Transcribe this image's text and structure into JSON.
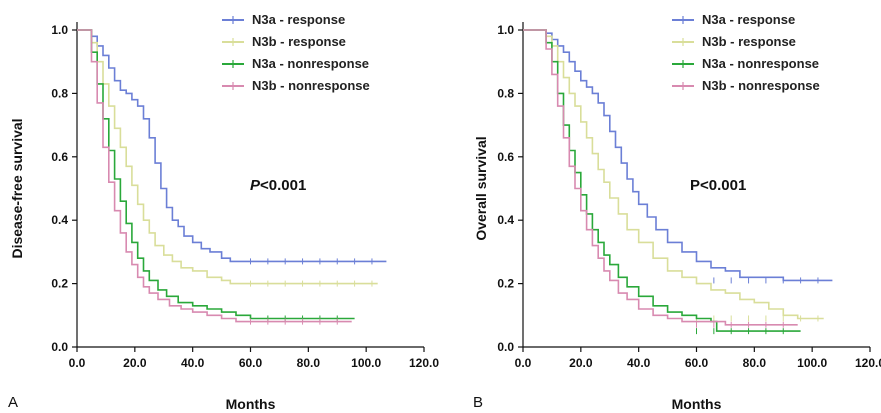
{
  "chart_data": [
    {
      "type": "line",
      "panel_label": "A",
      "xlabel": "Months",
      "ylabel": "Disease-free survival",
      "xlim": [
        0,
        120
      ],
      "ylim": [
        0,
        1.0
      ],
      "xticks": [
        "0.0",
        "20.0",
        "40.0",
        "60.0",
        "80.0",
        "100.0",
        "120.0"
      ],
      "yticks": [
        "0.0",
        "0.2",
        "0.4",
        "0.6",
        "0.8",
        "1.0"
      ],
      "annotation": {
        "italic": "P",
        "rest": "<0.001"
      },
      "legend_position": "top-right",
      "series": [
        {
          "name": "N3a - response",
          "color": "#6b7fd6",
          "x": [
            0,
            3,
            5,
            7,
            9,
            11,
            13,
            15,
            17,
            19,
            21,
            23,
            25,
            27,
            29,
            31,
            33,
            35,
            37,
            40,
            43,
            46,
            50,
            53,
            60,
            80,
            100,
            107
          ],
          "y": [
            1.0,
            1.0,
            0.98,
            0.95,
            0.92,
            0.88,
            0.84,
            0.81,
            0.8,
            0.78,
            0.76,
            0.72,
            0.66,
            0.58,
            0.5,
            0.44,
            0.4,
            0.38,
            0.35,
            0.33,
            0.31,
            0.3,
            0.28,
            0.27,
            0.27,
            0.27,
            0.27,
            0.27
          ]
        },
        {
          "name": "N3b - response",
          "color": "#d9de9a",
          "x": [
            0,
            3,
            5,
            7,
            9,
            11,
            13,
            15,
            17,
            19,
            21,
            23,
            25,
            27,
            30,
            33,
            36,
            40,
            45,
            50,
            53,
            60,
            80,
            100,
            104
          ],
          "y": [
            1.0,
            1.0,
            0.96,
            0.9,
            0.83,
            0.76,
            0.69,
            0.63,
            0.57,
            0.51,
            0.45,
            0.4,
            0.36,
            0.32,
            0.29,
            0.27,
            0.25,
            0.24,
            0.22,
            0.21,
            0.2,
            0.2,
            0.2,
            0.2,
            0.2
          ]
        },
        {
          "name": "N3a - nonresponse",
          "color": "#2aa83a",
          "x": [
            0,
            3,
            5,
            7,
            9,
            11,
            13,
            15,
            17,
            19,
            21,
            23,
            25,
            28,
            31,
            35,
            40,
            45,
            50,
            55,
            60,
            70,
            80,
            90,
            96
          ],
          "y": [
            1.0,
            1.0,
            0.93,
            0.83,
            0.72,
            0.62,
            0.53,
            0.46,
            0.39,
            0.33,
            0.28,
            0.24,
            0.21,
            0.18,
            0.16,
            0.14,
            0.13,
            0.12,
            0.11,
            0.1,
            0.09,
            0.09,
            0.09,
            0.09,
            0.09
          ]
        },
        {
          "name": "N3b - nonresponse",
          "color": "#d88ab0",
          "x": [
            0,
            3,
            5,
            7,
            9,
            11,
            13,
            15,
            17,
            19,
            21,
            23,
            25,
            28,
            32,
            36,
            40,
            45,
            50,
            55,
            60,
            70,
            80,
            90,
            95
          ],
          "y": [
            1.0,
            1.0,
            0.9,
            0.77,
            0.63,
            0.52,
            0.43,
            0.36,
            0.3,
            0.26,
            0.22,
            0.19,
            0.17,
            0.15,
            0.13,
            0.12,
            0.11,
            0.1,
            0.09,
            0.08,
            0.08,
            0.08,
            0.08,
            0.08,
            0.08
          ]
        }
      ]
    },
    {
      "type": "line",
      "panel_label": "B",
      "xlabel": "Months",
      "ylabel": "Overall survival",
      "xlim": [
        0,
        120
      ],
      "ylim": [
        0,
        1.0
      ],
      "xticks": [
        "0.0",
        "20.0",
        "40.0",
        "60.0",
        "80.0",
        "100.0",
        "120.0"
      ],
      "yticks": [
        "0.0",
        "0.2",
        "0.4",
        "0.6",
        "0.8",
        "1.0"
      ],
      "annotation": {
        "italic": "",
        "rest": "P<0.001"
      },
      "legend_position": "top-right",
      "series": [
        {
          "name": "N3a - response",
          "color": "#6b7fd6",
          "x": [
            0,
            5,
            8,
            10,
            12,
            14,
            16,
            18,
            20,
            22,
            24,
            26,
            28,
            30,
            32,
            34,
            36,
            38,
            40,
            43,
            46,
            50,
            55,
            60,
            65,
            70,
            75,
            80,
            90,
            100,
            107
          ],
          "y": [
            1.0,
            1.0,
            0.99,
            0.97,
            0.95,
            0.93,
            0.9,
            0.87,
            0.84,
            0.82,
            0.8,
            0.77,
            0.73,
            0.68,
            0.63,
            0.58,
            0.53,
            0.49,
            0.45,
            0.41,
            0.37,
            0.33,
            0.3,
            0.27,
            0.25,
            0.24,
            0.22,
            0.22,
            0.21,
            0.21,
            0.21
          ]
        },
        {
          "name": "N3b - response",
          "color": "#d9de9a",
          "x": [
            0,
            5,
            8,
            10,
            12,
            14,
            16,
            18,
            20,
            22,
            24,
            26,
            28,
            30,
            33,
            36,
            40,
            45,
            50,
            55,
            60,
            65,
            70,
            75,
            80,
            85,
            90,
            95,
            100,
            104
          ],
          "y": [
            1.0,
            1.0,
            0.98,
            0.95,
            0.9,
            0.85,
            0.8,
            0.76,
            0.71,
            0.66,
            0.61,
            0.56,
            0.52,
            0.47,
            0.42,
            0.37,
            0.33,
            0.28,
            0.24,
            0.22,
            0.2,
            0.18,
            0.17,
            0.15,
            0.14,
            0.12,
            0.1,
            0.09,
            0.09,
            0.09
          ]
        },
        {
          "name": "N3a - nonresponse",
          "color": "#2aa83a",
          "x": [
            0,
            5,
            8,
            10,
            12,
            14,
            16,
            18,
            20,
            22,
            24,
            26,
            28,
            30,
            33,
            36,
            40,
            45,
            50,
            55,
            60,
            65,
            67,
            70,
            80,
            90,
            96
          ],
          "y": [
            1.0,
            1.0,
            0.96,
            0.9,
            0.8,
            0.7,
            0.62,
            0.55,
            0.48,
            0.42,
            0.37,
            0.33,
            0.29,
            0.26,
            0.22,
            0.19,
            0.16,
            0.13,
            0.11,
            0.1,
            0.09,
            0.08,
            0.05,
            0.05,
            0.05,
            0.05,
            0.05
          ]
        },
        {
          "name": "N3b - nonresponse",
          "color": "#d88ab0",
          "x": [
            0,
            5,
            8,
            10,
            12,
            14,
            16,
            18,
            20,
            22,
            24,
            26,
            28,
            30,
            33,
            36,
            40,
            45,
            50,
            55,
            60,
            65,
            70,
            75,
            80,
            90,
            95
          ],
          "y": [
            1.0,
            1.0,
            0.94,
            0.86,
            0.76,
            0.66,
            0.57,
            0.5,
            0.43,
            0.37,
            0.32,
            0.28,
            0.24,
            0.21,
            0.17,
            0.15,
            0.12,
            0.1,
            0.09,
            0.08,
            0.08,
            0.08,
            0.07,
            0.07,
            0.07,
            0.07,
            0.07
          ]
        }
      ]
    }
  ]
}
